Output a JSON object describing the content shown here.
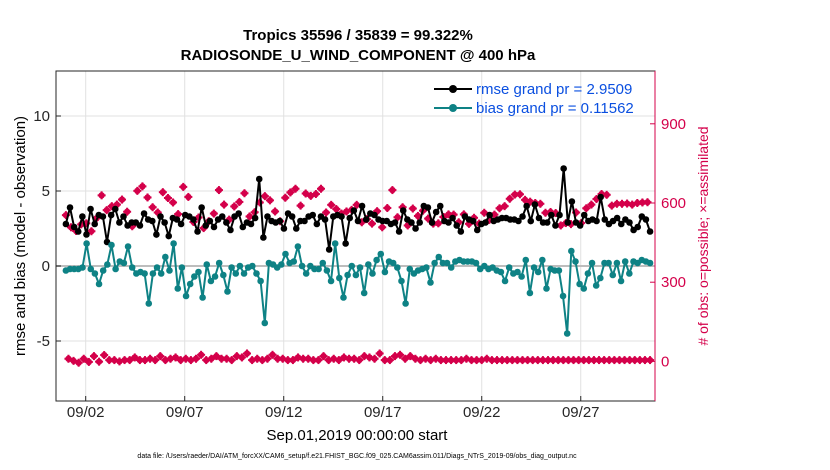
{
  "chart_data": {
    "type": "line",
    "title": "Tropics 35596 / 35839 = 99.322%",
    "subtitle": "RADIOSONDE_U_WIND_COMPONENT @ 400 hPa",
    "xlabel": "Sep.01,2019 00:00:00 start",
    "ylabel": "rmse and bias (model - observation)",
    "y2label": "# of obs: o=possible; ×=assimilated",
    "footnote": "data file: /Users/raeder/DAI/ATM_forcXX/CAM6_setup/f.e21.FHIST_BGC.f09_025.CAM6assim.011/Diags_NTrS_2019-09/obs_diag_output.nc",
    "xlim": [
      0.5,
      30.75
    ],
    "ylim": [
      -9,
      13
    ],
    "y2lim": [
      -150,
      1100
    ],
    "x_ticks": [
      2,
      7,
      12,
      17,
      22,
      27
    ],
    "x_tick_labels": [
      "09/02",
      "09/07",
      "09/12",
      "09/17",
      "09/22",
      "09/27"
    ],
    "y_ticks": [
      -5,
      0,
      5,
      10
    ],
    "y_tick_labels": [
      "-5",
      "0",
      "5",
      "10"
    ],
    "y2_ticks": [
      0,
      300,
      600,
      900
    ],
    "y2_tick_labels": [
      "0",
      "300",
      "600",
      "900"
    ],
    "grid": true,
    "legend": [
      "rmse grand pr = 2.9509",
      "bias grand pr = 0.11562"
    ],
    "series": [
      {
        "name": "rmse grand pr = 2.9509",
        "axis": "left",
        "color": "#000000",
        "values": [
          2.8,
          3.9,
          2.6,
          2.3,
          3.3,
          2.1,
          3.8,
          2.8,
          3.4,
          3.3,
          1.6,
          3.4,
          3.8,
          2.9,
          3.3,
          2.7,
          2.9,
          2.9,
          2.7,
          3.5,
          3.1,
          3.0,
          2.1,
          3.3,
          2.9,
          2.0,
          3.2,
          3.1,
          2.8,
          3.4,
          3.3,
          3.1,
          2.3,
          3.9,
          2.7,
          3.0,
          2.6,
          3.1,
          3.3,
          2.9,
          2.4,
          3.3,
          3.5,
          2.6,
          2.9,
          2.8,
          3.2,
          5.8,
          1.9,
          3.3,
          3.0,
          2.9,
          3.0,
          2.5,
          3.5,
          3.3,
          2.5,
          3.0,
          3.0,
          3.3,
          3.4,
          2.8,
          3.3,
          3.1,
          1.1,
          3.3,
          3.4,
          3.3,
          1.5,
          3.2,
          3.7,
          3.0,
          4.0,
          3.1,
          3.5,
          3.4,
          3.1,
          3.0,
          3.0,
          2.8,
          2.9,
          2.3,
          3.7,
          3.1,
          2.9,
          2.5,
          2.9,
          4.0,
          3.9,
          2.9,
          3.6,
          4.0,
          3.0,
          2.9,
          3.2,
          2.7,
          2.3,
          3.3,
          3.1,
          3.0,
          2.4,
          2.8,
          2.9,
          3.4,
          3.0,
          3.1,
          3.2,
          3.2,
          3.1,
          3.1,
          3.0,
          3.3,
          4.0,
          3.0,
          4.1,
          3.2,
          2.9,
          2.9,
          3.4,
          2.7,
          3.4,
          6.5,
          2.9,
          4.3,
          2.9,
          2.7,
          3.4,
          3.0,
          3.1,
          3.0,
          4.6,
          3.1,
          2.8,
          3.0,
          3.2,
          2.8,
          3.1,
          2.9,
          2.4,
          2.6,
          3.3,
          3.1,
          2.3
        ]
      },
      {
        "name": "bias grand pr = 0.11562",
        "axis": "left",
        "color": "#0e8285",
        "values": [
          -0.3,
          -0.2,
          -0.2,
          -0.2,
          -0.1,
          1.5,
          -0.2,
          -0.5,
          -1.2,
          -0.3,
          0.1,
          1.4,
          -0.2,
          0.3,
          0.2,
          1.3,
          -0.1,
          -0.5,
          -0.4,
          -0.5,
          -2.5,
          -0.5,
          -0.1,
          -0.5,
          0.6,
          -0.3,
          1.5,
          -1.5,
          -0.1,
          -2.0,
          -1.2,
          -0.7,
          -0.4,
          -2.1,
          0.1,
          -1.0,
          -0.7,
          0.2,
          -0.6,
          -1.7,
          -0.1,
          -0.5,
          0.0,
          -0.5,
          -0.1,
          0.0,
          -0.5,
          -1.0,
          -3.8,
          0.2,
          0.1,
          -0.1,
          0.1,
          0.8,
          0.2,
          0.3,
          1.3,
          0.0,
          -0.5,
          0.0,
          -0.2,
          -0.2,
          0.2,
          -0.3,
          -1.0,
          1.5,
          -0.8,
          -2.1,
          -0.6,
          0.0,
          -0.6,
          -0.1,
          -1.8,
          0.1,
          -0.5,
          0.4,
          0.8,
          -0.4,
          0.3,
          0.2,
          -0.1,
          -1.0,
          -2.5,
          -0.2,
          -0.5,
          -0.3,
          -0.2,
          -0.1,
          -1.1,
          0.2,
          0.6,
          0.2,
          0.2,
          -0.1,
          0.3,
          0.4,
          0.3,
          0.3,
          0.3,
          0.2,
          -0.2,
          0.0,
          -0.2,
          -0.1,
          -0.3,
          -0.4,
          -1.0,
          -0.1,
          -0.5,
          -0.4,
          -0.7,
          0.4,
          -1.8,
          -0.1,
          -0.4,
          0.4,
          -1.5,
          -0.2,
          -0.3,
          -0.3,
          -2.0,
          -4.5,
          1.0,
          0.3,
          -1.2,
          -1.5,
          -0.5,
          0.2,
          -1.3,
          -0.8,
          0.2,
          0.2,
          -0.6,
          0.2,
          -1.0,
          0.3,
          -0.5,
          0.3,
          0.2,
          0.4,
          0.3,
          0.2
        ]
      },
      {
        "name": "# obs possible",
        "axis": "right",
        "color": "#d4004a",
        "values": [
          554,
          10,
          508,
          2,
          494,
          -5,
          519,
          10,
          523,
          -2,
          493,
          20,
          542,
          -1,
          629,
          24,
          573,
          5,
          588,
          5,
          594,
          0,
          613,
          5,
          567,
          5,
          512,
          15,
          646,
          5,
          663,
          5,
          621,
          10,
          584,
          5,
          564,
          20,
          641,
          5,
          619,
          10,
          602,
          15,
          558,
          5,
          661,
          10,
          623,
          5,
          528,
          10,
          545,
          25,
          505,
          5,
          531,
          10,
          560,
          20,
          649,
          10,
          594,
          10,
          537,
          5,
          587,
          20,
          604,
          15,
          637,
          30,
          549,
          5,
          565,
          10,
          602,
          5,
          626,
          10,
          610,
          25,
          568,
          10,
          531,
          10,
          620,
          5,
          640,
          5,
          654,
          15,
          590,
          10,
          636,
          10,
          627,
          5,
          634,
          5,
          654,
          20,
          564,
          5,
          593,
          10,
          577,
          5,
          560,
          15,
          568,
          10,
          574,
          10,
          593,
          5,
          527,
          20,
          539,
          15,
          522,
          10,
          569,
          30,
          508,
          5,
          581,
          5,
          649,
          20,
          546,
          25,
          584,
          10,
          515,
          20,
          579,
          10,
          551,
          5,
          571,
          10,
          541,
          5,
          522,
          10,
          523,
          5,
          547,
          5,
          557,
          5,
          556,
          5,
          527,
          5,
          557,
          10,
          521,
          5,
          544,
          5,
          522,
          5,
          563,
          10,
          536,
          5,
          556,
          5,
          580,
          5,
          588,
          5,
          616,
          5,
          632,
          5,
          633,
          5,
          612,
          5,
          605,
          5,
          600,
          5,
          597,
          5,
          563,
          5,
          566,
          5,
          562,
          5,
          515,
          5,
          524,
          5,
          520,
          5,
          564,
          5,
          524,
          5,
          580,
          5,
          594,
          5,
          615,
          5,
          634,
          5,
          631,
          5,
          590,
          5,
          597,
          5,
          597,
          5,
          598,
          5,
          594,
          5,
          600,
          5,
          602,
          5,
          603,
          5
        ]
      }
    ]
  }
}
